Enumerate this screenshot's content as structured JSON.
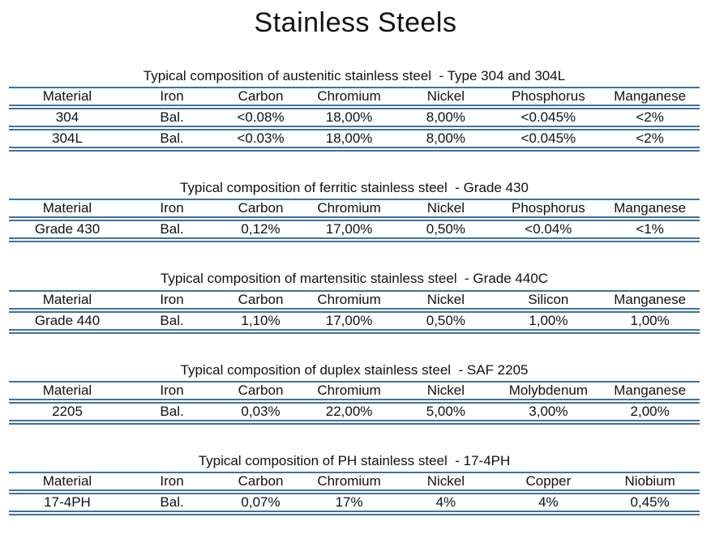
{
  "title": "Stainless Steels",
  "colors": {
    "accent": "#41719c",
    "text": "#111111",
    "background": "#ffffff"
  },
  "tables": [
    {
      "caption": "Typical composition of austenitic stainless steel  - Type 304 and 304L",
      "headers": [
        "Material",
        "Iron",
        "Carbon",
        "Chromium",
        "Nickel",
        "Phosphorus",
        "Manganese"
      ],
      "rows": [
        [
          "304",
          "Bal.",
          "<0.08%",
          "18,00%",
          "8,00%",
          "<0.045%",
          "<2%"
        ],
        [
          "304L",
          "Bal.",
          "<0.03%",
          "18,00%",
          "8,00%",
          "<0.045%",
          "<2%"
        ]
      ]
    },
    {
      "caption": "Typical composition of ferritic stainless steel  - Grade 430",
      "headers": [
        "Material",
        "Iron",
        "Carbon",
        "Chromium",
        "Nickel",
        "Phosphorus",
        "Manganese"
      ],
      "rows": [
        [
          "Grade 430",
          "Bal.",
          "0,12%",
          "17,00%",
          "0,50%",
          "<0.04%",
          "<1%"
        ]
      ]
    },
    {
      "caption": "Typical composition of martensitic stainless steel  - Grade 440C",
      "headers": [
        "Material",
        "Iron",
        "Carbon",
        "Chromium",
        "Nickel",
        "Silicon",
        "Manganese"
      ],
      "rows": [
        [
          "Grade 440",
          "Bal.",
          "1,10%",
          "17,00%",
          "0,50%",
          "1,00%",
          "1,00%"
        ]
      ]
    },
    {
      "caption": "Typical composition of duplex stainless steel  - SAF 2205",
      "headers": [
        "Material",
        "Iron",
        "Carbon",
        "Chromium",
        "Nickel",
        "Molybdenum",
        "Manganese"
      ],
      "rows": [
        [
          "2205",
          "Bal.",
          "0,03%",
          "22,00%",
          "5,00%",
          "3,00%",
          "2,00%"
        ]
      ]
    },
    {
      "caption": "Typical composition of PH stainless steel  - 17-4PH",
      "headers": [
        "Material",
        "Iron",
        "Carbon",
        "Chromium",
        "Nickel",
        "Copper",
        "Niobium"
      ],
      "rows": [
        [
          "17-4PH",
          "Bal.",
          "0,07%",
          "17%",
          "4%",
          "4%",
          "0,45%"
        ]
      ]
    }
  ]
}
